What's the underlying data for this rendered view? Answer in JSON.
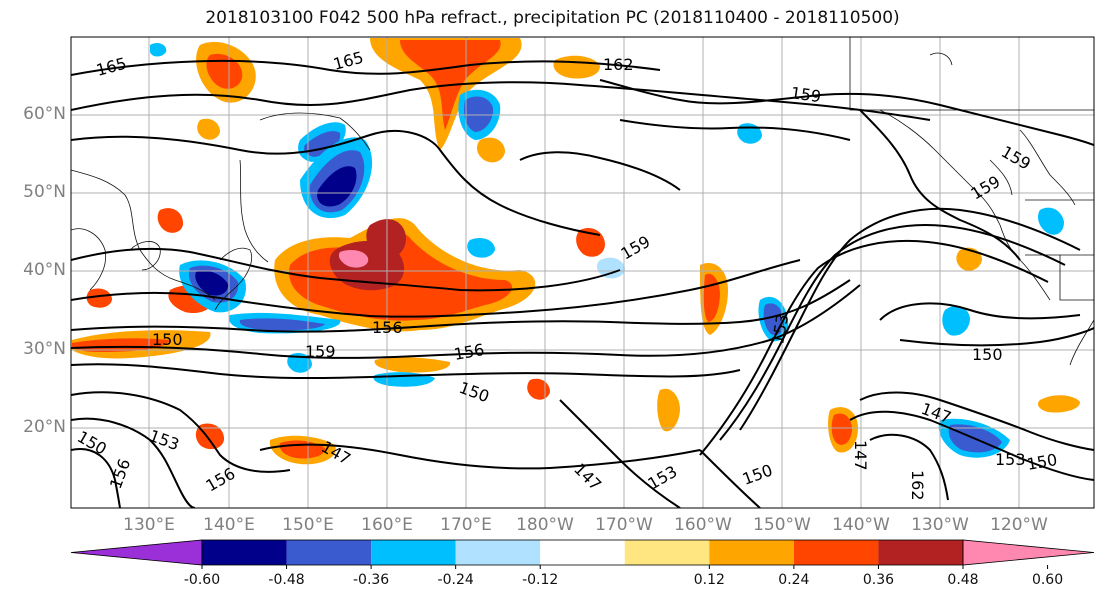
{
  "title": "2018103100 F042 500 hPa refract., precipitation PC (2018110400 - 2018110500)",
  "lat_labels": [
    "60°N",
    "50°N",
    "40°N",
    "30°N",
    "20°N"
  ],
  "lon_labels": [
    "130°E",
    "140°E",
    "150°E",
    "160°E",
    "170°E",
    "180°W",
    "170°W",
    "160°W",
    "150°W",
    "140°W",
    "130°W",
    "120°W"
  ],
  "contour_labels": [
    "165",
    "165",
    "162",
    "159",
    "159",
    "159",
    "159",
    "156",
    "150",
    "159",
    "156",
    "150",
    "153",
    "150",
    "147",
    "147",
    "147",
    "153",
    "150",
    "153",
    "150",
    "150",
    "147",
    "153",
    "156",
    "156",
    "162"
  ],
  "colorbar": {
    "colors": [
      "#9b30d9",
      "#00008b",
      "#3a5bcf",
      "#00bfff",
      "#b0e2ff",
      "#ffffff",
      "#ffe680",
      "#ffa500",
      "#ff4500",
      "#b22222",
      "#ff88b0"
    ],
    "tick_labels": [
      "-0.60",
      "-0.48",
      "-0.36",
      "-0.24",
      "-0.12",
      "0.12",
      "0.24",
      "0.36",
      "0.48",
      "0.60"
    ]
  }
}
